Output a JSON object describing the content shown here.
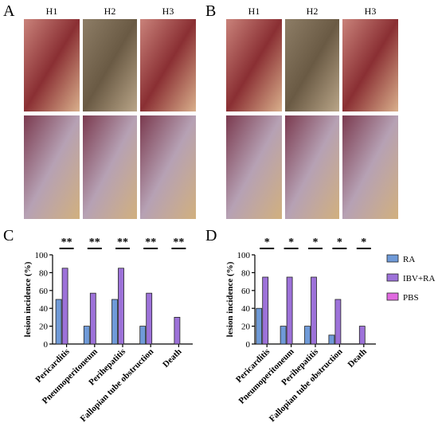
{
  "panels": {
    "A": {
      "letter": "A",
      "columns": [
        "H1",
        "H2",
        "H3"
      ]
    },
    "B": {
      "letter": "B",
      "columns": [
        "H1",
        "H2",
        "H3"
      ]
    }
  },
  "chart_data": [
    {
      "type": "bar",
      "letter": "C",
      "ylabel": "lesion incidence (%)",
      "categories": [
        "Pericarditis",
        "Pneumoperitoneum",
        "Perihepatitis",
        "Fallopian tube obstruction",
        "Death"
      ],
      "significance": [
        "**",
        "**",
        "**",
        "**",
        "**"
      ],
      "series": [
        {
          "color": "#6f9ad8",
          "values": [
            50,
            20,
            50,
            20,
            0
          ]
        },
        {
          "color": "#9d72d9",
          "values": [
            85,
            57,
            85,
            57,
            30
          ]
        },
        {
          "color": "#e06ae0",
          "values": [
            0,
            0,
            0,
            0,
            0
          ]
        }
      ],
      "ylim": [
        0,
        100
      ],
      "yticks": [
        0,
        20,
        40,
        60,
        80,
        100
      ],
      "legend": false
    },
    {
      "type": "bar",
      "letter": "D",
      "ylabel": "lesion incidence (%)",
      "categories": [
        "Pericarditis",
        "Pneumoperitoneum",
        "Perihepatitis",
        "Fallopian tube obstruction",
        "Death"
      ],
      "significance": [
        "*",
        "*",
        "*",
        "*",
        "*"
      ],
      "series": [
        {
          "name": "RA",
          "color": "#6f9ad8",
          "values": [
            40,
            20,
            20,
            10,
            0
          ]
        },
        {
          "name": "IBV+RA",
          "color": "#9d72d9",
          "values": [
            75,
            75,
            75,
            50,
            20
          ]
        },
        {
          "name": "PBS",
          "color": "#e06ae0",
          "values": [
            0,
            0,
            0,
            0,
            0
          ]
        }
      ],
      "ylim": [
        0,
        100
      ],
      "yticks": [
        0,
        20,
        40,
        60,
        80,
        100
      ],
      "legend": "right"
    }
  ]
}
